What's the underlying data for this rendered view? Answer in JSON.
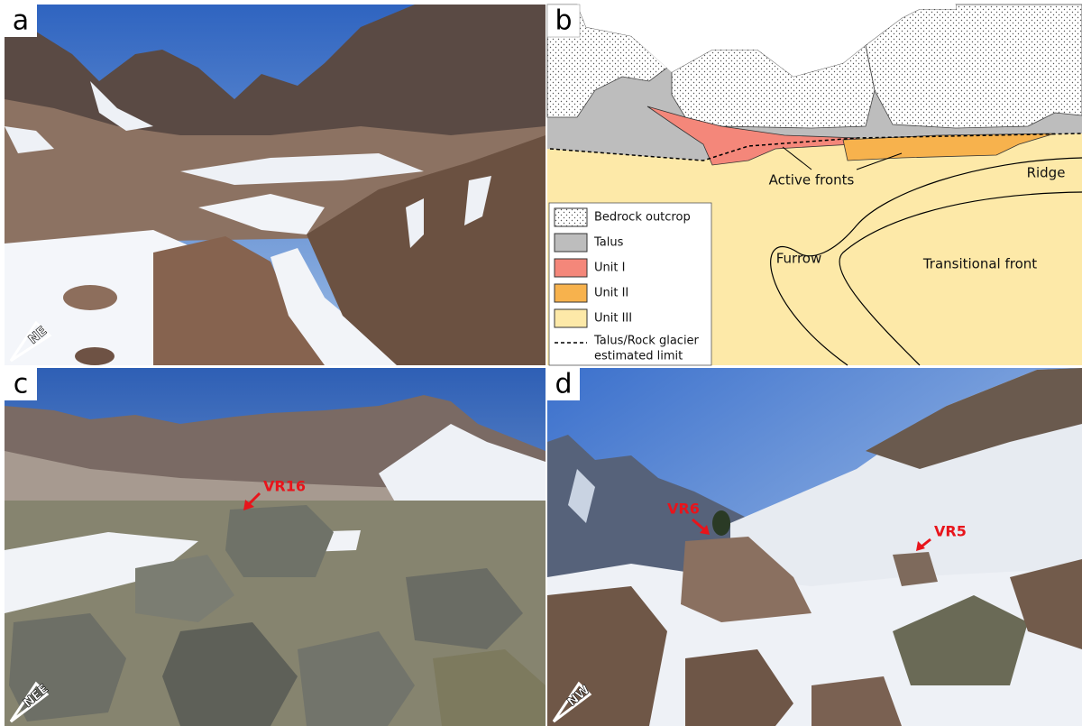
{
  "panel_a": {
    "letter": "a",
    "compass": "NE"
  },
  "panel_b": {
    "letter": "b",
    "labels": {
      "active_fronts": "Active fronts",
      "ridge": "Ridge",
      "furrow": "Furrow",
      "transitional_front": "Transitional front"
    },
    "legend": [
      "Bedrock outcrop",
      "Talus",
      "Unit I",
      "Unit II",
      "Unit III"
    ],
    "limit_legend": [
      "Talus/Rock glacier",
      "estimated limit"
    ]
  },
  "panel_c": {
    "letter": "c",
    "compass": "NEE",
    "sample": "VR16"
  },
  "panel_d": {
    "letter": "d",
    "compass": "NW",
    "samples": [
      "VR6",
      "VR5"
    ]
  }
}
